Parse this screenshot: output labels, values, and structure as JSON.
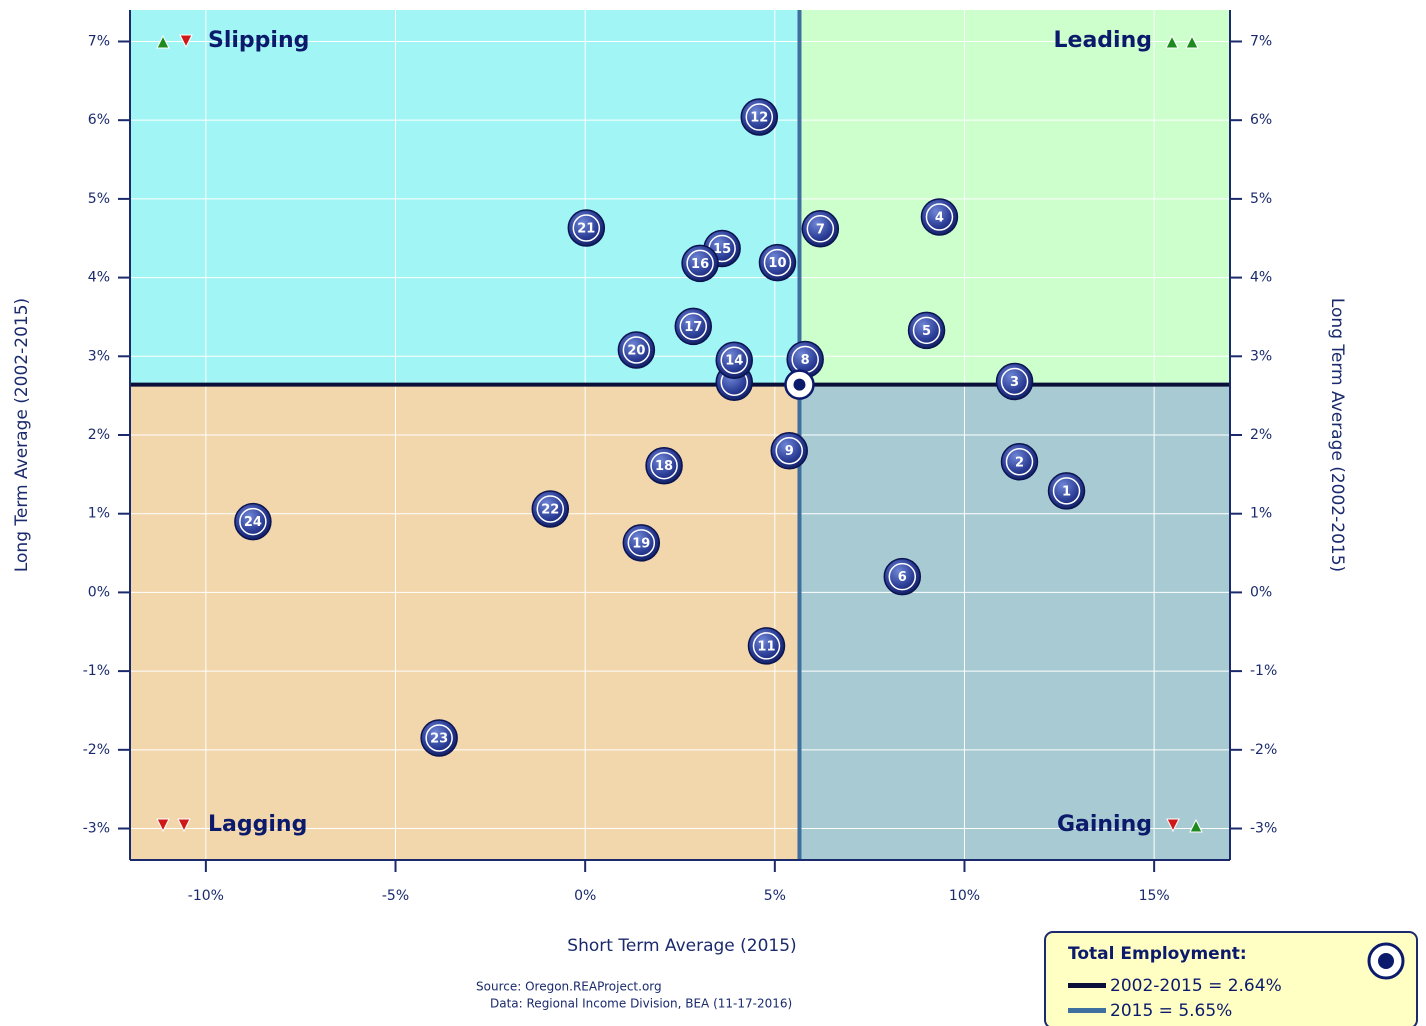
{
  "chart_data": {
    "type": "scatter",
    "xlabel": "Short Term Average (2015)",
    "ylabel": "Long Term Average (2002-2015)",
    "y2label": "Long Term Average (2002-2015)",
    "xlim": [
      -12,
      17
    ],
    "ylim": [
      -3.4,
      7.4
    ],
    "xticks": [
      {
        "value": -10,
        "label": "-10%"
      },
      {
        "value": -5,
        "label": "-5%"
      },
      {
        "value": 0,
        "label": "0%"
      },
      {
        "value": 5,
        "label": "5%"
      },
      {
        "value": 10,
        "label": "10%"
      },
      {
        "value": 15,
        "label": "15%"
      }
    ],
    "yticks": [
      {
        "value": -3,
        "label": "-3%"
      },
      {
        "value": -2,
        "label": "-2%"
      },
      {
        "value": -1,
        "label": "-1%"
      },
      {
        "value": 0,
        "label": "0%"
      },
      {
        "value": 1,
        "label": "1%"
      },
      {
        "value": 2,
        "label": "2%"
      },
      {
        "value": 3,
        "label": "3%"
      },
      {
        "value": 4,
        "label": "4%"
      },
      {
        "value": 5,
        "label": "5%"
      },
      {
        "value": 6,
        "label": "6%"
      },
      {
        "value": 7,
        "label": "7%"
      }
    ],
    "grid": true,
    "quadrants": {
      "top_left": "Slipping",
      "top_right": "Leading",
      "bottom_left": "Lagging",
      "bottom_right": "Gaining"
    },
    "quadrant_colors": {
      "top_left": "#a2f5f5",
      "top_right": "#ccffcc",
      "bottom_left": "#f2d6ac",
      "bottom_right": "#a8cbd3"
    },
    "reference": {
      "x": 5.65,
      "y": 2.64,
      "x_color": "#3f6f9f",
      "y_color": "#0a0f3a"
    },
    "labels": [
      "1",
      "2",
      "3",
      "4",
      "5",
      "6",
      "7",
      "8",
      "9",
      "10",
      "11",
      "12",
      null,
      "14",
      "15",
      "16",
      "17",
      "18",
      "19",
      "20",
      "21",
      "22",
      "23",
      "24"
    ],
    "x": [
      12.69,
      11.45,
      11.32,
      9.34,
      9.0,
      8.36,
      6.2,
      5.8,
      5.38,
      5.07,
      4.78,
      4.59,
      3.93,
      3.93,
      3.61,
      3.03,
      2.85,
      2.08,
      1.48,
      1.35,
      0.03,
      -0.92,
      -3.85,
      -8.76
    ],
    "values": [
      1.29,
      1.66,
      2.68,
      4.77,
      3.33,
      0.2,
      4.62,
      2.96,
      1.8,
      4.19,
      -0.68,
      6.04,
      2.67,
      2.95,
      4.37,
      4.18,
      3.38,
      1.61,
      0.63,
      3.08,
      4.63,
      1.06,
      -1.85,
      0.9
    ],
    "source": "Source:  Oregon.REAProject.org",
    "data_note": "Data:  Regional Income Division, BEA (11-17-2016)",
    "legend": {
      "title": "Total Employment:",
      "entries": [
        "2002-2015 = 2.64%",
        "2015 = 5.65%"
      ]
    }
  }
}
